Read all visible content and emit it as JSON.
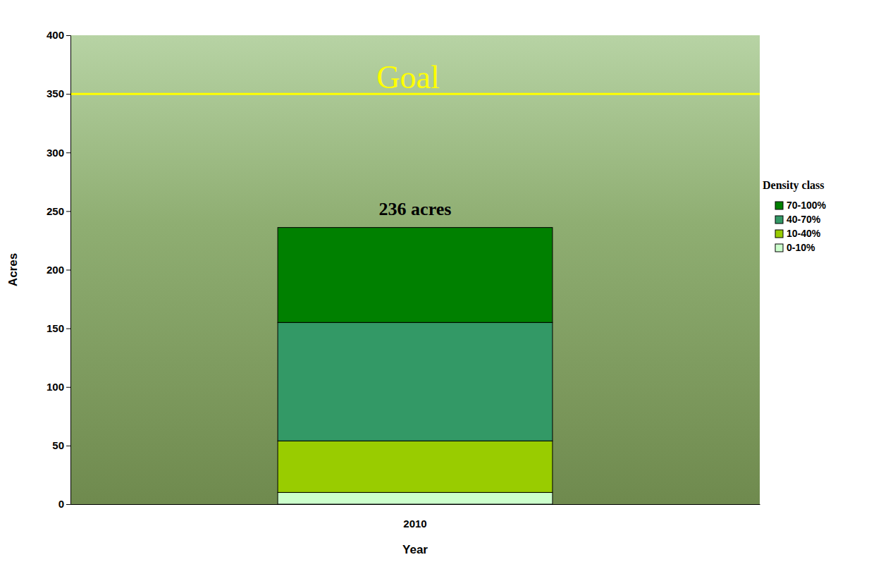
{
  "chart_data": {
    "type": "bar",
    "stacked": true,
    "grid": false,
    "legend": "right",
    "x_label": "Year",
    "y_label": "Acres",
    "categories": [
      "2010"
    ],
    "series": [
      {
        "name": "0-10%",
        "color": "#ccffcc",
        "values": [
          10
        ]
      },
      {
        "name": "10-40%",
        "color": "#99cc00",
        "values": [
          44
        ]
      },
      {
        "name": "40-70%",
        "color": "#339966",
        "values": [
          101
        ]
      },
      {
        "name": "70-100%",
        "color": "#008000",
        "values": [
          81
        ]
      }
    ],
    "legend_title": "Density class",
    "goal": {
      "label": "Goal",
      "value": 350,
      "color": "#ffff00"
    },
    "annotations": [
      {
        "text": "236 acres",
        "value": 236
      }
    ],
    "ylim": [
      0,
      400
    ],
    "yticks": [
      0,
      50,
      100,
      150,
      200,
      250,
      300,
      350,
      400
    ]
  }
}
